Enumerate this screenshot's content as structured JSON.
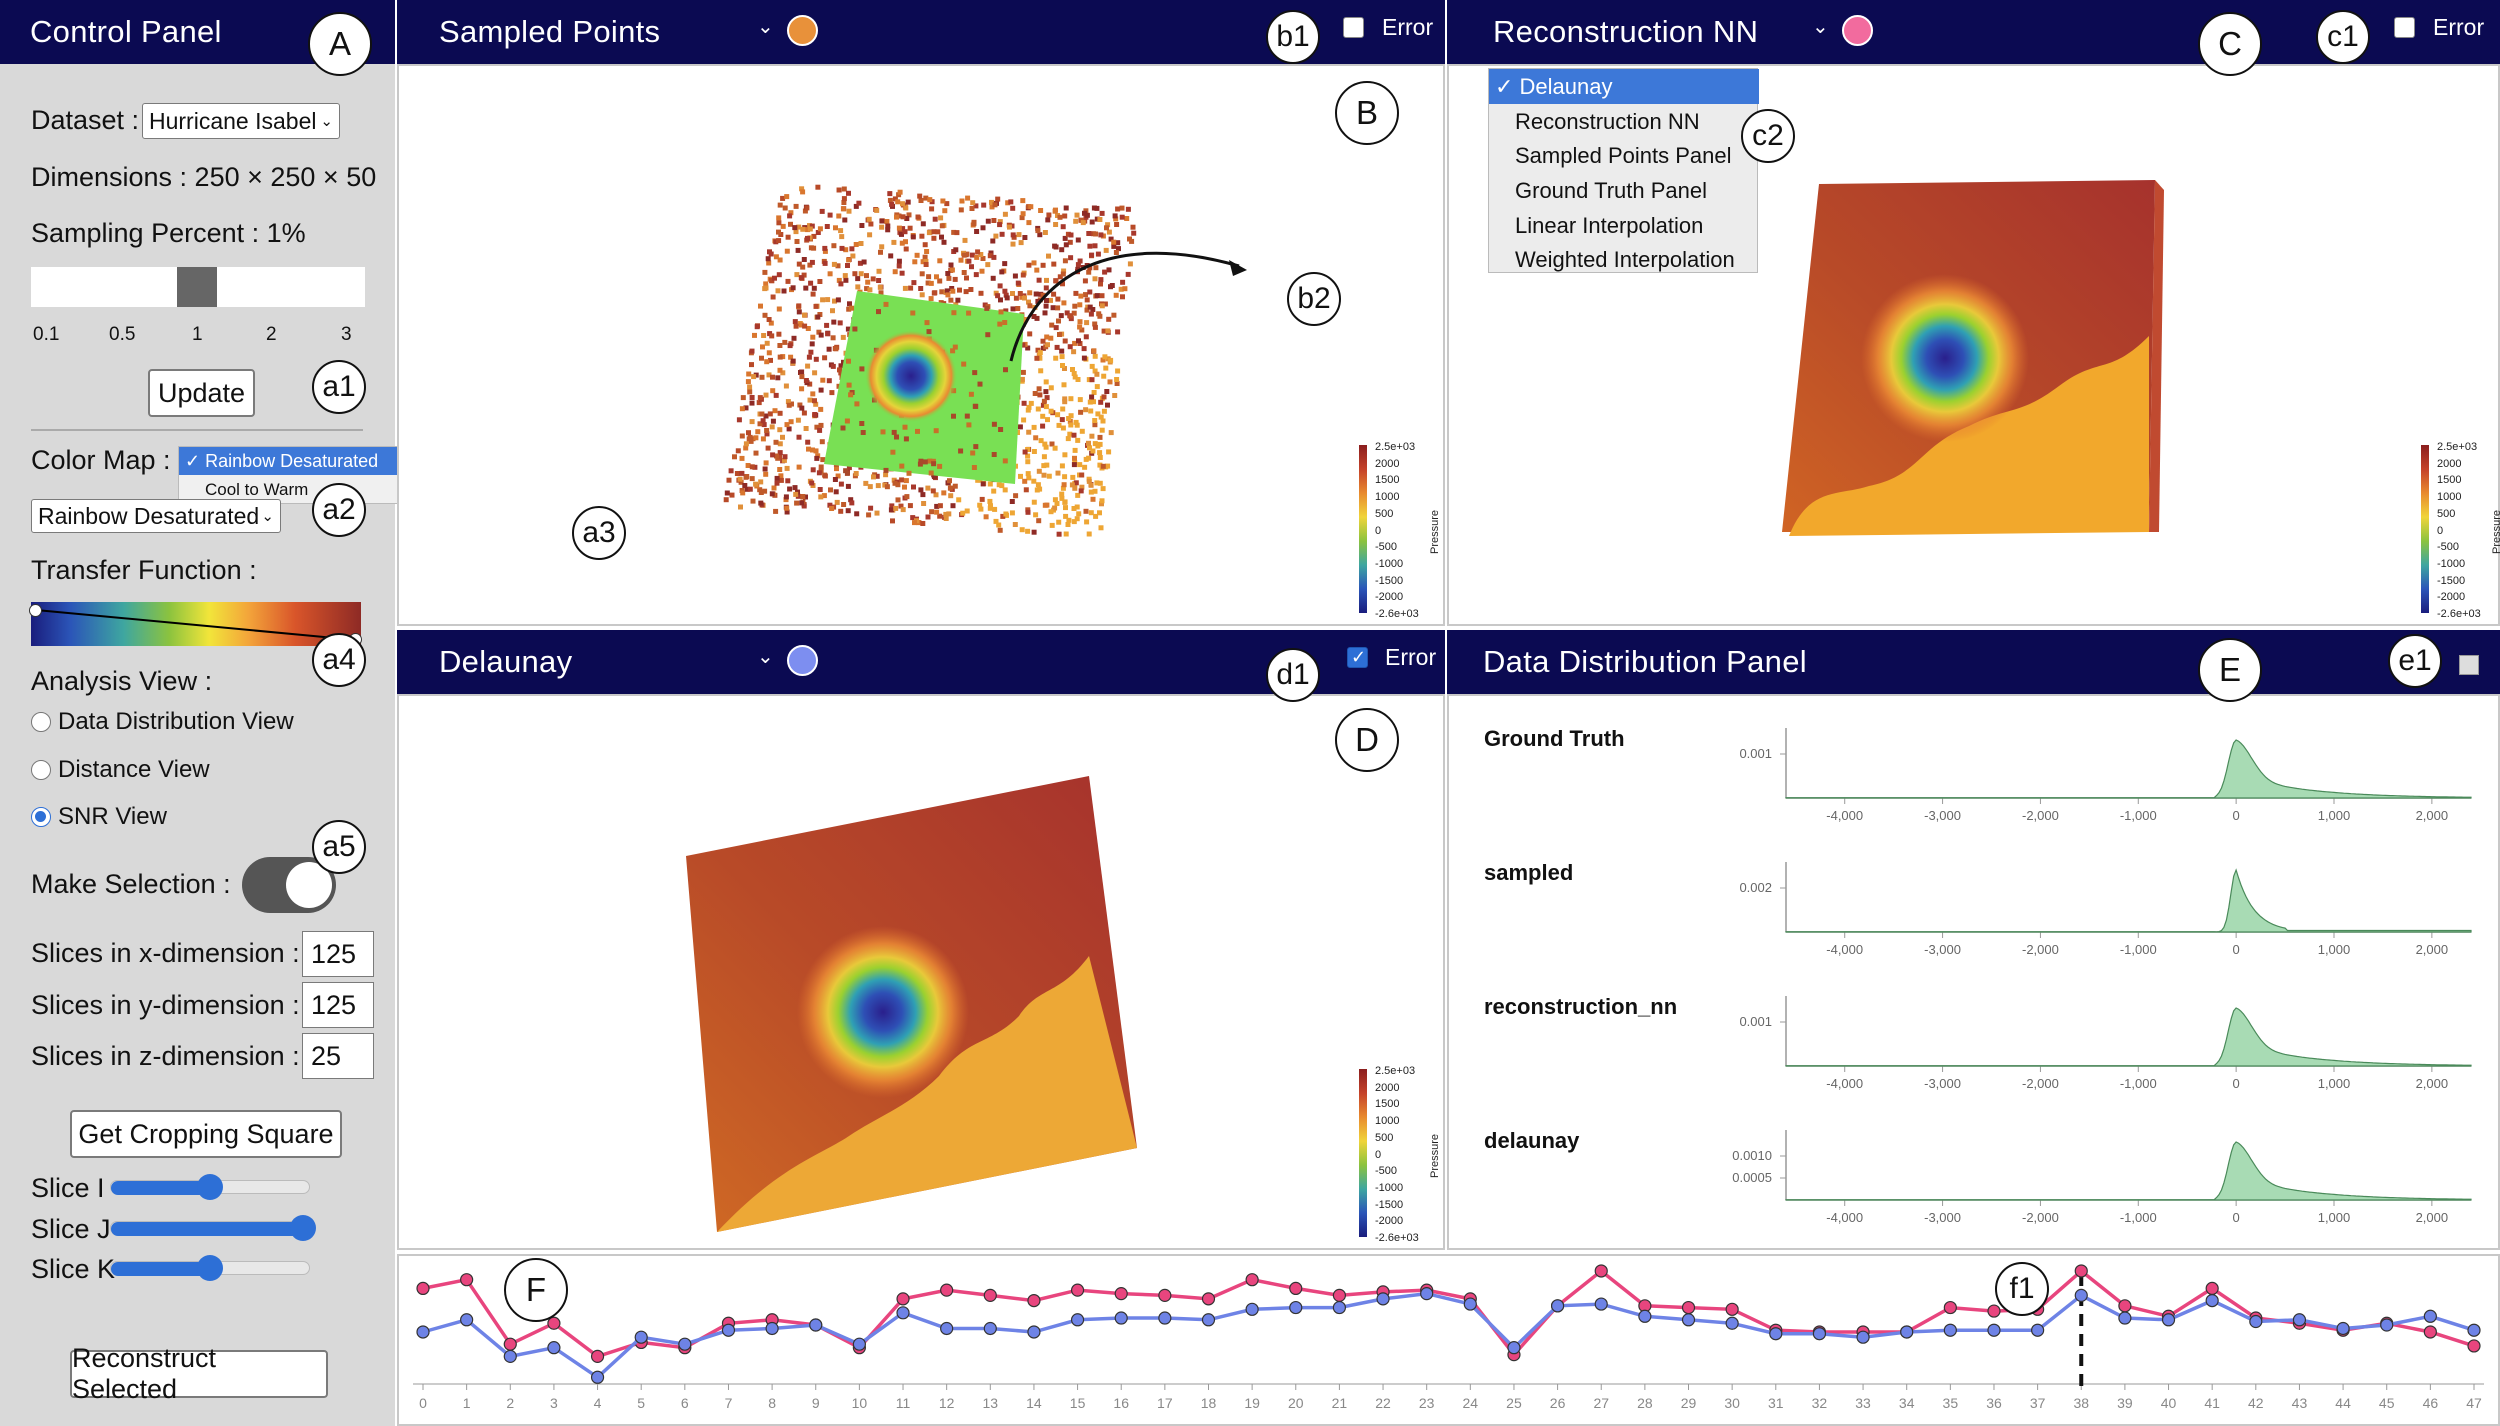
{
  "callouts": {
    "A": "A",
    "B": "B",
    "C": "C",
    "D": "D",
    "E": "E",
    "F": "F",
    "a1": "a1",
    "a2": "a2",
    "a3": "a3",
    "a4": "a4",
    "a5": "a5",
    "b1": "b1",
    "b2": "b2",
    "c1": "c1",
    "c2": "c2",
    "d1": "d1",
    "e1": "e1",
    "f1": "f1"
  },
  "control_panel": {
    "title": "Control Panel",
    "dataset_label": "Dataset :",
    "dataset_value": "Hurricane Isabel",
    "dimensions_text": "Dimensions : 250 × 250 × 50",
    "sampling_text": "Sampling Percent : 1%",
    "sampling_ticks": [
      "0.1",
      "0.5",
      "1",
      "2",
      "3"
    ],
    "update_label": "Update",
    "color_map_label": "Color Map :",
    "color_map_value": "Rainbow Desaturated",
    "color_map_options": [
      "✓ Rainbow Desaturated",
      "Cool to Warm"
    ],
    "transfer_label": "Transfer Function :",
    "analysis_label": "Analysis View :",
    "analysis_options": [
      {
        "label": "Data Distribution View",
        "checked": false
      },
      {
        "label": "Distance View",
        "checked": false
      },
      {
        "label": "SNR View",
        "checked": true
      }
    ],
    "make_selection_label": "Make Selection :",
    "make_selection_on": true,
    "slices_x_label": "Slices in x-dimension :",
    "slices_x_value": "125",
    "slices_y_label": "Slices in y-dimension :",
    "slices_y_value": "125",
    "slices_z_label": "Slices in z-dimension :",
    "slices_z_value": "25",
    "crop_button": "Get Cropping Square",
    "slice_i_label": "Slice I",
    "slice_i_value": 0.5,
    "slice_j_label": "Slice J",
    "slice_j_value": 0.97,
    "slice_k_label": "Slice K",
    "slice_k_value": 0.5,
    "reconstruct_button": "Reconstruct Selected"
  },
  "panels": {
    "sampled": {
      "title": "Sampled Points",
      "dot_color": "#e8913a",
      "error_label": "Error",
      "error_checked": false
    },
    "recon": {
      "title": "Reconstruction NN",
      "dot_color": "#f26b9e",
      "error_label": "Error",
      "error_checked": false
    },
    "delaunay": {
      "title": "Delaunay",
      "dot_color": "#7d8ef0",
      "error_label": "Error",
      "error_checked": true
    },
    "distribution": {
      "title": "Data Distribution Panel"
    }
  },
  "view_dropdown": {
    "items": [
      "✓ Delaunay",
      "Reconstruction NN",
      "Sampled Points Panel",
      "Ground Truth Panel",
      "Linear Interpolation",
      "Weighted Interpolation"
    ]
  },
  "colorbar": {
    "labels": [
      "2.5e+03",
      "2000",
      "1500",
      "1000",
      "500",
      "0",
      "-500",
      "-1000",
      "-1500",
      "-2000",
      "-2.6e+03"
    ],
    "title": "Pressure"
  },
  "distribution": {
    "x_ticks": [
      "-4,000",
      "-3,000",
      "-2,000",
      "-1,000",
      "0",
      "1,000",
      "2,000"
    ],
    "rows": [
      {
        "name": "Ground Truth",
        "y_ticks": [
          "0.001"
        ]
      },
      {
        "name": "sampled",
        "y_ticks": [
          "0.002"
        ]
      },
      {
        "name": "reconstruction_nn",
        "y_ticks": [
          "0.001"
        ]
      },
      {
        "name": "delaunay",
        "y_ticks": [
          "0.0010",
          "0.0005"
        ]
      }
    ]
  },
  "colors": {
    "header": "#0b0a52",
    "accent": "#2d6fd6",
    "pink_series": "#e8457e",
    "blue_series": "#6e83e6",
    "density_fill": "#a8dbb4"
  },
  "chart_data": {
    "type": "line",
    "x": [
      "0",
      "1",
      "2",
      "3",
      "4",
      "5",
      "6",
      "7",
      "8",
      "9",
      "10",
      "11",
      "12",
      "13",
      "14",
      "15",
      "16",
      "17",
      "18",
      "19",
      "20",
      "21",
      "22",
      "23",
      "24",
      "25",
      "26",
      "27",
      "28",
      "29",
      "30",
      "31",
      "32",
      "33",
      "34",
      "35",
      "36",
      "37",
      "38",
      "39",
      "40",
      "41",
      "42",
      "43",
      "44",
      "45",
      "46",
      "47"
    ],
    "series": [
      {
        "color": "#e8457e",
        "values": [
          0.86,
          0.91,
          0.54,
          0.66,
          0.47,
          0.55,
          0.52,
          0.66,
          0.68,
          0.65,
          0.52,
          0.8,
          0.85,
          0.82,
          0.79,
          0.85,
          0.83,
          0.82,
          0.8,
          0.91,
          0.86,
          0.82,
          0.84,
          0.85,
          0.8,
          0.48,
          0.76,
          0.96,
          0.76,
          0.75,
          0.74,
          0.62,
          0.61,
          0.61,
          0.61,
          0.75,
          0.73,
          0.74,
          0.96,
          0.76,
          0.7,
          0.86,
          0.69,
          0.66,
          0.62,
          0.66,
          0.61,
          0.53
        ]
      },
      {
        "color": "#6e83e6",
        "values": [
          0.61,
          0.68,
          0.47,
          0.52,
          0.35,
          0.58,
          0.54,
          0.62,
          0.63,
          0.65,
          0.54,
          0.72,
          0.63,
          0.63,
          0.61,
          0.68,
          0.69,
          0.69,
          0.68,
          0.74,
          0.75,
          0.75,
          0.8,
          0.83,
          0.77,
          0.52,
          0.76,
          0.77,
          0.7,
          0.68,
          0.66,
          0.6,
          0.6,
          0.58,
          0.61,
          0.62,
          0.62,
          0.62,
          0.82,
          0.69,
          0.68,
          0.79,
          0.67,
          0.68,
          0.63,
          0.65,
          0.7,
          0.62
        ]
      }
    ],
    "ylim": [
      0.3,
      1.0
    ],
    "marker": "38"
  }
}
